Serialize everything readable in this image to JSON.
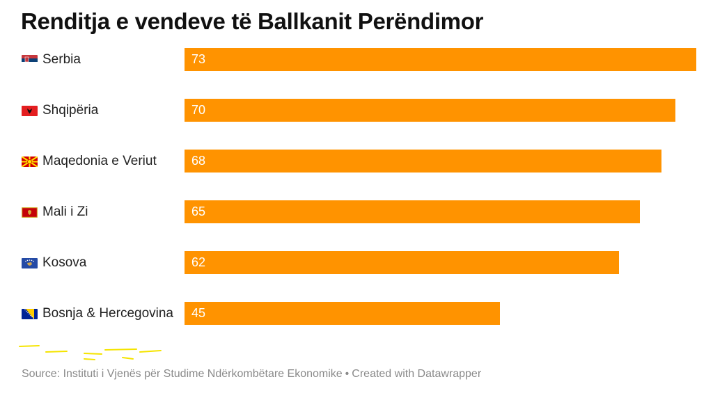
{
  "chart_data": {
    "type": "bar",
    "orientation": "horizontal",
    "title": "Renditja e vendeve të Ballkanit Perëndimor",
    "categories": [
      "Serbia",
      "Shqipëria",
      "Maqedonia e Veriut",
      "Mali i Zi",
      "Kosova",
      "Bosnja & Hercegovina"
    ],
    "values": [
      73,
      70,
      68,
      65,
      62,
      45
    ],
    "flags": [
      "flag-serbia-icon",
      "flag-albania-icon",
      "flag-north-macedonia-icon",
      "flag-montenegro-icon",
      "flag-kosovo-icon",
      "flag-bosnia-icon"
    ],
    "xlim": [
      0,
      73
    ],
    "bar_color": "#ff9300",
    "value_label_color": "#ffffff",
    "grid": false,
    "xlabel": "",
    "ylabel": ""
  },
  "footer": {
    "source": "Source: Instituti i Vjenës për Studime Ndërkombëtare Ekonomike",
    "separator": "•",
    "credit": "Created with Datawrapper"
  }
}
